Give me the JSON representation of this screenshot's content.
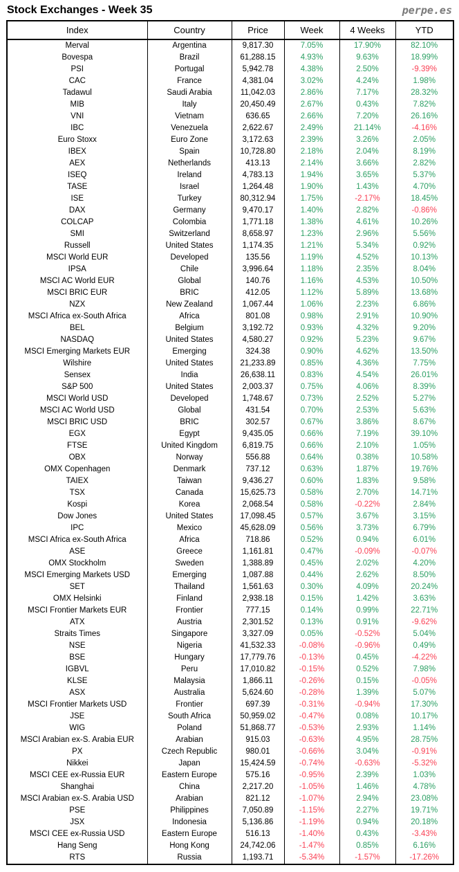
{
  "header": {
    "title": "Stock Exchanges - Week 35",
    "logo": "perpe.es"
  },
  "colors": {
    "positive": "#2CA064",
    "negative": "#FA4155",
    "text": "#000000",
    "logo_gray": "#7a7a7a"
  },
  "chart_data": {
    "type": "table",
    "title": "Stock Exchanges - Week 35",
    "columns": [
      "Index",
      "Country",
      "Price",
      "Week",
      "4 Weeks",
      "YTD"
    ],
    "rows": [
      [
        "Merval",
        "Argentina",
        "9,817.30",
        "7.05%",
        "17.90%",
        "82.10%"
      ],
      [
        "Bovespa",
        "Brazil",
        "61,288.15",
        "4.93%",
        "9.63%",
        "18.99%"
      ],
      [
        "PSI",
        "Portugal",
        "5,942.78",
        "4.38%",
        "2.50%",
        "-9.39%"
      ],
      [
        "CAC",
        "France",
        "4,381.04",
        "3.02%",
        "4.24%",
        "1.98%"
      ],
      [
        "Tadawul",
        "Saudi Arabia",
        "11,042.03",
        "2.86%",
        "7.17%",
        "28.32%"
      ],
      [
        "MIB",
        "Italy",
        "20,450.49",
        "2.67%",
        "0.43%",
        "7.82%"
      ],
      [
        "VNI",
        "Vietnam",
        "636.65",
        "2.66%",
        "7.20%",
        "26.16%"
      ],
      [
        "IBC",
        "Venezuela",
        "2,622.67",
        "2.49%",
        "21.14%",
        "-4.16%"
      ],
      [
        "Euro Stoxx",
        "Euro Zone",
        "3,172.63",
        "2.39%",
        "3.26%",
        "2.05%"
      ],
      [
        "IBEX",
        "Spain",
        "10,728.80",
        "2.18%",
        "2.04%",
        "8.19%"
      ],
      [
        "AEX",
        "Netherlands",
        "413.13",
        "2.14%",
        "3.66%",
        "2.82%"
      ],
      [
        "ISEQ",
        "Ireland",
        "4,783.13",
        "1.94%",
        "3.65%",
        "5.37%"
      ],
      [
        "TASE",
        "Israel",
        "1,264.48",
        "1.90%",
        "1.43%",
        "4.70%"
      ],
      [
        "ISE",
        "Turkey",
        "80,312.94",
        "1.75%",
        "-2.17%",
        "18.45%"
      ],
      [
        "DAX",
        "Germany",
        "9,470.17",
        "1.40%",
        "2.82%",
        "-0.86%"
      ],
      [
        "COLCAP",
        "Colombia",
        "1,771.18",
        "1.38%",
        "4.61%",
        "10.26%"
      ],
      [
        "SMI",
        "Switzerland",
        "8,658.97",
        "1.23%",
        "2.96%",
        "5.56%"
      ],
      [
        "Russell",
        "United States",
        "1,174.35",
        "1.21%",
        "5.34%",
        "0.92%"
      ],
      [
        "MSCI World EUR",
        "Developed",
        "135.56",
        "1.19%",
        "4.52%",
        "10.13%"
      ],
      [
        "IPSA",
        "Chile",
        "3,996.64",
        "1.18%",
        "2.35%",
        "8.04%"
      ],
      [
        "MSCI AC World EUR",
        "Global",
        "140.76",
        "1.16%",
        "4.53%",
        "10.50%"
      ],
      [
        "MSCI BRIC EUR",
        "BRIC",
        "412.05",
        "1.12%",
        "5.89%",
        "13.68%"
      ],
      [
        "NZX",
        "New Zealand",
        "1,067.44",
        "1.06%",
        "2.23%",
        "6.86%"
      ],
      [
        "MSCI Africa ex-South Africa",
        "Africa",
        "801.08",
        "0.98%",
        "2.91%",
        "10.90%"
      ],
      [
        "BEL",
        "Belgium",
        "3,192.72",
        "0.93%",
        "4.32%",
        "9.20%"
      ],
      [
        "NASDAQ",
        "United States",
        "4,580.27",
        "0.92%",
        "5.23%",
        "9.67%"
      ],
      [
        "MSCI Emerging Markets EUR",
        "Emerging",
        "324.38",
        "0.90%",
        "4.62%",
        "13.50%"
      ],
      [
        "Wilshire",
        "United States",
        "21,233.89",
        "0.85%",
        "4.36%",
        "7.75%"
      ],
      [
        "Sensex",
        "India",
        "26,638.11",
        "0.83%",
        "4.54%",
        "26.01%"
      ],
      [
        "S&P 500",
        "United States",
        "2,003.37",
        "0.75%",
        "4.06%",
        "8.39%"
      ],
      [
        "MSCI World USD",
        "Developed",
        "1,748.67",
        "0.73%",
        "2.52%",
        "5.27%"
      ],
      [
        "MSCI AC World USD",
        "Global",
        "431.54",
        "0.70%",
        "2.53%",
        "5.63%"
      ],
      [
        "MSCI BRIC USD",
        "BRIC",
        "302.57",
        "0.67%",
        "3.86%",
        "8.67%"
      ],
      [
        "EGX",
        "Egypt",
        "9,435.05",
        "0.66%",
        "7.19%",
        "39.10%"
      ],
      [
        "FTSE",
        "United Kingdom",
        "6,819.75",
        "0.66%",
        "2.10%",
        "1.05%"
      ],
      [
        "OBX",
        "Norway",
        "556.88",
        "0.64%",
        "0.38%",
        "10.58%"
      ],
      [
        "OMX Copenhagen",
        "Denmark",
        "737.12",
        "0.63%",
        "1.87%",
        "19.76%"
      ],
      [
        "TAIEX",
        "Taiwan",
        "9,436.27",
        "0.60%",
        "1.83%",
        "9.58%"
      ],
      [
        "TSX",
        "Canada",
        "15,625.73",
        "0.58%",
        "2.70%",
        "14.71%"
      ],
      [
        "Kospi",
        "Korea",
        "2,068.54",
        "0.58%",
        "-0.22%",
        "2.84%"
      ],
      [
        "Dow Jones",
        "United States",
        "17,098.45",
        "0.57%",
        "3.67%",
        "3.15%"
      ],
      [
        "IPC",
        "Mexico",
        "45,628.09",
        "0.56%",
        "3.73%",
        "6.79%"
      ],
      [
        "MSCI Africa ex-South Africa",
        "Africa",
        "718.86",
        "0.52%",
        "0.94%",
        "6.01%"
      ],
      [
        "ASE",
        "Greece",
        "1,161.81",
        "0.47%",
        "-0.09%",
        "-0.07%"
      ],
      [
        "OMX Stockholm",
        "Sweden",
        "1,388.89",
        "0.45%",
        "2.02%",
        "4.20%"
      ],
      [
        "MSCI Emerging Markets USD",
        "Emerging",
        "1,087.88",
        "0.44%",
        "2.62%",
        "8.50%"
      ],
      [
        "SET",
        "Thailand",
        "1,561.63",
        "0.30%",
        "4.09%",
        "20.24%"
      ],
      [
        "OMX Helsinki",
        "Finland",
        "2,938.18",
        "0.15%",
        "1.42%",
        "3.63%"
      ],
      [
        "MSCI Frontier Markets EUR",
        "Frontier",
        "777.15",
        "0.14%",
        "0.99%",
        "22.71%"
      ],
      [
        "ATX",
        "Austria",
        "2,301.52",
        "0.13%",
        "0.91%",
        "-9.62%"
      ],
      [
        "Straits Times",
        "Singapore",
        "3,327.09",
        "0.05%",
        "-0.52%",
        "5.04%"
      ],
      [
        "NSE",
        "Nigeria",
        "41,532.33",
        "-0.08%",
        "-0.96%",
        "0.49%"
      ],
      [
        "BSE",
        "Hungary",
        "17,779.76",
        "-0.13%",
        "0.45%",
        "-4.22%"
      ],
      [
        "IGBVL",
        "Peru",
        "17,010.82",
        "-0.15%",
        "0.52%",
        "7.98%"
      ],
      [
        "KLSE",
        "Malaysia",
        "1,866.11",
        "-0.26%",
        "0.15%",
        "-0.05%"
      ],
      [
        "ASX",
        "Australia",
        "5,624.60",
        "-0.28%",
        "1.39%",
        "5.07%"
      ],
      [
        "MSCI Frontier Markets USD",
        "Frontier",
        "697.39",
        "-0.31%",
        "-0.94%",
        "17.30%"
      ],
      [
        "JSE",
        "South Africa",
        "50,959.02",
        "-0.47%",
        "0.08%",
        "10.17%"
      ],
      [
        "WIG",
        "Poland",
        "51,868.77",
        "-0.53%",
        "2.93%",
        "1.14%"
      ],
      [
        "MSCI Arabian ex-S. Arabia EUR",
        "Arabian",
        "915.03",
        "-0.63%",
        "4.95%",
        "28.75%"
      ],
      [
        "PX",
        "Czech Republic",
        "980.01",
        "-0.66%",
        "3.04%",
        "-0.91%"
      ],
      [
        "Nikkei",
        "Japan",
        "15,424.59",
        "-0.74%",
        "-0.63%",
        "-5.32%"
      ],
      [
        "MSCI CEE ex-Russia EUR",
        "Eastern Europe",
        "575.16",
        "-0.95%",
        "2.39%",
        "1.03%"
      ],
      [
        "Shanghai",
        "China",
        "2,217.20",
        "-1.05%",
        "1.46%",
        "4.78%"
      ],
      [
        "MSCI Arabian ex-S. Arabia USD",
        "Arabian",
        "821.12",
        "-1.07%",
        "2.94%",
        "23.08%"
      ],
      [
        "PSE",
        "Philippines",
        "7,050.89",
        "-1.15%",
        "2.27%",
        "19.71%"
      ],
      [
        "JSX",
        "Indonesia",
        "5,136.86",
        "-1.19%",
        "0.94%",
        "20.18%"
      ],
      [
        "MSCI CEE ex-Russia USD",
        "Eastern Europe",
        "516.13",
        "-1.40%",
        "0.43%",
        "-3.43%"
      ],
      [
        "Hang Seng",
        "Hong Kong",
        "24,742.06",
        "-1.47%",
        "0.85%",
        "6.16%"
      ],
      [
        "RTS",
        "Russia",
        "1,193.71",
        "-5.34%",
        "-1.57%",
        "-17.26%"
      ]
    ],
    "layout": {
      "grid": "vertical-column-separators-only",
      "percent_positive_color": "#2CA064",
      "percent_negative_color": "#FA4155"
    }
  }
}
